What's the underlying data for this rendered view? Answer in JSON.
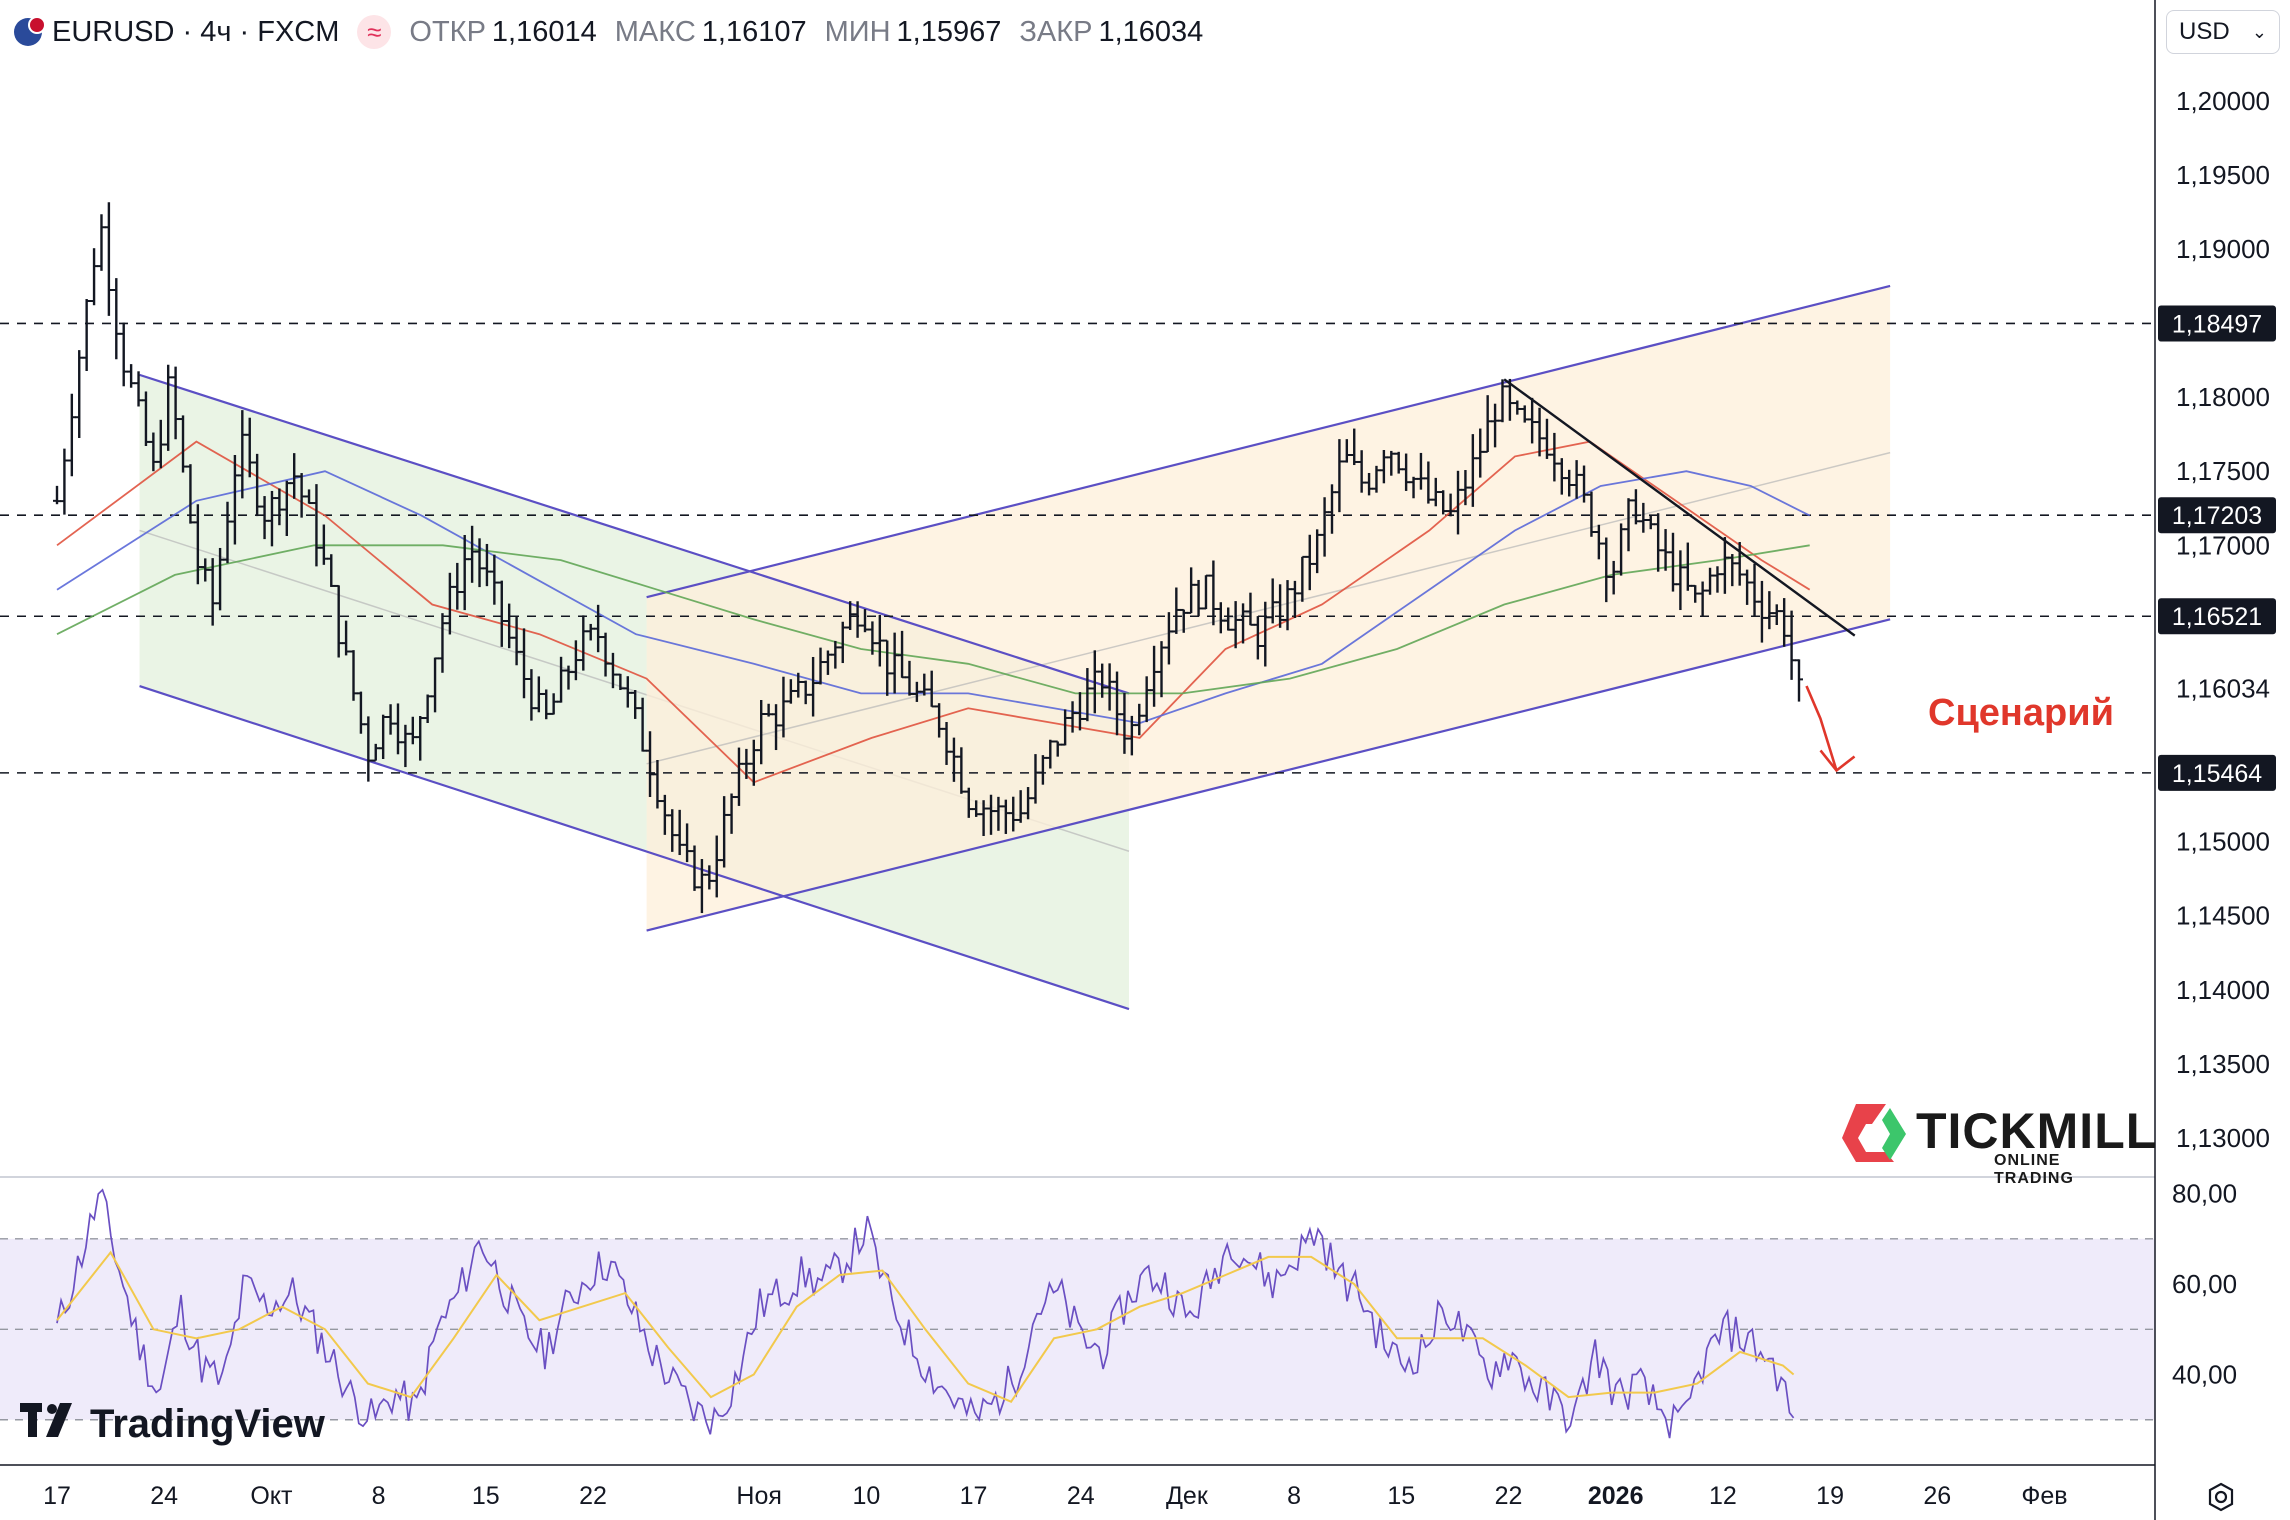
{
  "header": {
    "symbol": "EURUSD · 4ч · FXCM",
    "open_label": "ОТКР",
    "open_value": "1,16014",
    "high_label": "МАКС",
    "high_value": "1,16107",
    "low_label": "МИН",
    "low_value": "1,15967",
    "close_label": "ЗАКР",
    "close_value": "1,16034",
    "source_icon": "≈"
  },
  "currency_selector": {
    "value": "USD"
  },
  "annotations": {
    "scenario": "Сценарий"
  },
  "logos": {
    "tradingview": "TradingView",
    "tickmill": "TICKMILL",
    "tickmill_sub": "ONLINE TRADING"
  },
  "colors": {
    "candle": "#131722",
    "channel_line": "#5b4fc4",
    "green_zone": "#e6f2e1",
    "orange_zone": "#fdefd9",
    "ma_red": "#e0533f",
    "ma_blue": "#5a68d8",
    "ma_green": "#62a656",
    "rsi_line": "#6a4fc2",
    "rsi_ma": "#f2c94c",
    "rsi_band": "#efebfa",
    "scenario": "#e0372b"
  },
  "chart_data": [
    {
      "type": "candlestick",
      "symbol": "EURUSD",
      "timeframe": "4ч",
      "price_axis": {
        "ticks": [
          "1,20000",
          "1,19500",
          "1,19000",
          "1,18000",
          "1,17500",
          "1,17000",
          "1,16034",
          "1,15000",
          "1,14500",
          "1,14000",
          "1,13500",
          "1,13000"
        ],
        "tick_values": [
          1.2,
          1.195,
          1.19,
          1.18,
          1.175,
          1.17,
          1.16034,
          1.15,
          1.145,
          1.14,
          1.135,
          1.13
        ],
        "ylim": [
          1.1275,
          1.2068
        ]
      },
      "time_axis": {
        "labels": [
          "17",
          "24",
          "Окт",
          "8",
          "15",
          "22",
          "Ноя",
          "10",
          "17",
          "24",
          "Дек",
          "8",
          "15",
          "22",
          "2026",
          "12",
          "19",
          "26",
          "Фев"
        ],
        "bold_labels": [
          "2026"
        ],
        "label_positions": [
          0,
          1,
          2,
          3,
          4,
          5,
          6.55,
          7.55,
          8.55,
          9.55,
          10.54,
          11.54,
          12.54,
          13.54,
          14.54,
          15.54,
          16.54,
          17.54,
          18.54
        ]
      },
      "levels": [
        {
          "value": 1.18497,
          "label": "1,18497"
        },
        {
          "value": 1.17203,
          "label": "1,17203"
        },
        {
          "value": 1.16521,
          "label": "1,16521"
        },
        {
          "value": 1.15464,
          "label": "1,15464"
        }
      ],
      "last_price": {
        "value": 1.16034,
        "label": "1,16034"
      },
      "price_path": [
        [
          0,
          1.173
        ],
        [
          0.4,
          1.192
        ],
        [
          0.6,
          1.183
        ],
        [
          0.9,
          1.175
        ],
        [
          1.05,
          1.181
        ],
        [
          1.3,
          1.169
        ],
        [
          1.45,
          1.166
        ],
        [
          1.7,
          1.177
        ],
        [
          1.95,
          1.172
        ],
        [
          2.2,
          1.175
        ],
        [
          2.45,
          1.17
        ],
        [
          2.7,
          1.162
        ],
        [
          2.9,
          1.156
        ],
        [
          3.1,
          1.159
        ],
        [
          3.3,
          1.156
        ],
        [
          3.6,
          1.165
        ],
        [
          3.85,
          1.17
        ],
        [
          4.05,
          1.167
        ],
        [
          4.3,
          1.162
        ],
        [
          4.55,
          1.158
        ],
        [
          4.85,
          1.163
        ],
        [
          5.05,
          1.164
        ],
        [
          5.3,
          1.16
        ],
        [
          5.55,
          1.155
        ],
        [
          5.8,
          1.149
        ],
        [
          6.05,
          1.147
        ],
        [
          6.3,
          1.153
        ],
        [
          6.55,
          1.158
        ],
        [
          6.8,
          1.159
        ],
        [
          7.05,
          1.161
        ],
        [
          7.3,
          1.164
        ],
        [
          7.5,
          1.166
        ],
        [
          7.75,
          1.162
        ],
        [
          8.0,
          1.16
        ],
        [
          8.25,
          1.158
        ],
        [
          8.5,
          1.153
        ],
        [
          8.75,
          1.152
        ],
        [
          9.0,
          1.152
        ],
        [
          9.25,
          1.156
        ],
        [
          9.5,
          1.159
        ],
        [
          9.75,
          1.161
        ],
        [
          10.0,
          1.157
        ],
        [
          10.2,
          1.162
        ],
        [
          10.45,
          1.166
        ],
        [
          10.7,
          1.167
        ],
        [
          10.95,
          1.165
        ],
        [
          11.2,
          1.164
        ],
        [
          11.45,
          1.166
        ],
        [
          11.75,
          1.17
        ],
        [
          12.0,
          1.176
        ],
        [
          12.2,
          1.174
        ],
        [
          12.4,
          1.177
        ],
        [
          12.6,
          1.175
        ],
        [
          12.8,
          1.173
        ],
        [
          13.0,
          1.172
        ],
        [
          13.25,
          1.176
        ],
        [
          13.45,
          1.18
        ],
        [
          13.65,
          1.178
        ],
        [
          13.9,
          1.177
        ],
        [
          14.1,
          1.175
        ],
        [
          14.3,
          1.172
        ],
        [
          14.5,
          1.168
        ],
        [
          14.7,
          1.173
        ],
        [
          14.9,
          1.17
        ],
        [
          15.1,
          1.168
        ],
        [
          15.3,
          1.166
        ],
        [
          15.5,
          1.169
        ],
        [
          15.7,
          1.168
        ],
        [
          15.9,
          1.166
        ],
        [
          16.1,
          1.165
        ],
        [
          16.25,
          1.16
        ]
      ],
      "moving_averages": [
        {
          "color": "red",
          "path": [
            [
              0,
              1.17
            ],
            [
              1.3,
              1.177
            ],
            [
              2.5,
              1.172
            ],
            [
              3.5,
              1.166
            ],
            [
              4.5,
              1.164
            ],
            [
              5.5,
              1.161
            ],
            [
              6.5,
              1.154
            ],
            [
              7.6,
              1.157
            ],
            [
              8.5,
              1.159
            ],
            [
              9.3,
              1.158
            ],
            [
              10.1,
              1.157
            ],
            [
              10.9,
              1.163
            ],
            [
              11.8,
              1.166
            ],
            [
              12.8,
              1.171
            ],
            [
              13.6,
              1.176
            ],
            [
              14.3,
              1.177
            ],
            [
              15.1,
              1.173
            ],
            [
              15.9,
              1.169
            ],
            [
              16.35,
              1.167
            ]
          ]
        },
        {
          "color": "blue",
          "path": [
            [
              0,
              1.167
            ],
            [
              1.3,
              1.173
            ],
            [
              2.5,
              1.175
            ],
            [
              3.4,
              1.172
            ],
            [
              4.4,
              1.168
            ],
            [
              5.4,
              1.164
            ],
            [
              6.5,
              1.162
            ],
            [
              7.5,
              1.16
            ],
            [
              8.5,
              1.16
            ],
            [
              9.3,
              1.159
            ],
            [
              10.1,
              1.158
            ],
            [
              10.9,
              1.16
            ],
            [
              11.8,
              1.162
            ],
            [
              12.8,
              1.167
            ],
            [
              13.6,
              1.171
            ],
            [
              14.4,
              1.174
            ],
            [
              15.2,
              1.175
            ],
            [
              15.8,
              1.174
            ],
            [
              16.35,
              1.172
            ]
          ]
        },
        {
          "color": "green",
          "path": [
            [
              0,
              1.164
            ],
            [
              1.1,
              1.168
            ],
            [
              2.4,
              1.17
            ],
            [
              3.6,
              1.17
            ],
            [
              4.7,
              1.169
            ],
            [
              5.6,
              1.167
            ],
            [
              6.5,
              1.165
            ],
            [
              7.5,
              1.163
            ],
            [
              8.5,
              1.162
            ],
            [
              9.5,
              1.16
            ],
            [
              10.5,
              1.16
            ],
            [
              11.5,
              1.161
            ],
            [
              12.5,
              1.163
            ],
            [
              13.5,
              1.166
            ],
            [
              14.5,
              1.168
            ],
            [
              15.5,
              1.169
            ],
            [
              16.35,
              1.17
            ]
          ]
        }
      ],
      "channels": [
        {
          "zone": "green",
          "x": [
            0.77,
            10.0
          ],
          "upper": [
            1.1815,
            1.16
          ],
          "lower": [
            1.1605,
            1.1387
          ]
        },
        {
          "zone": "orange",
          "x": [
            5.5,
            17.1
          ],
          "upper": [
            1.1665,
            1.1875
          ],
          "lower": [
            1.144,
            1.165
          ]
        }
      ],
      "trendline": {
        "from": [
          13.5,
          1.1812
        ],
        "to": [
          16.77,
          1.1639
        ]
      },
      "scenario_arrow": [
        [
          16.32,
          1.1605
        ],
        [
          16.45,
          1.1583
        ],
        [
          16.6,
          1.1548
        ]
      ]
    },
    {
      "type": "line",
      "indicator": "RSI",
      "y_ticks": [
        "80,00",
        "60,00",
        "40,00"
      ],
      "tick_values": [
        80,
        60,
        40
      ],
      "band": [
        30,
        70
      ],
      "midline": 50,
      "ylim": [
        20,
        83
      ],
      "rsi": [
        [
          0,
          50
        ],
        [
          0.25,
          68
        ],
        [
          0.4,
          80
        ],
        [
          0.55,
          66
        ],
        [
          0.75,
          48
        ],
        [
          0.95,
          35
        ],
        [
          1.15,
          55
        ],
        [
          1.35,
          42
        ],
        [
          1.55,
          38
        ],
        [
          1.75,
          60
        ],
        [
          1.95,
          55
        ],
        [
          2.2,
          58
        ],
        [
          2.45,
          48
        ],
        [
          2.6,
          42
        ],
        [
          2.75,
          35
        ],
        [
          2.95,
          30
        ],
        [
          3.15,
          36
        ],
        [
          3.35,
          32
        ],
        [
          3.55,
          50
        ],
        [
          3.75,
          58
        ],
        [
          3.95,
          70
        ],
        [
          4.15,
          60
        ],
        [
          4.35,
          50
        ],
        [
          4.55,
          45
        ],
        [
          4.75,
          55
        ],
        [
          4.95,
          62
        ],
        [
          5.15,
          65
        ],
        [
          5.35,
          55
        ],
        [
          5.55,
          45
        ],
        [
          5.75,
          38
        ],
        [
          5.95,
          32
        ],
        [
          6.15,
          30
        ],
        [
          6.35,
          40
        ],
        [
          6.55,
          55
        ],
        [
          6.75,
          58
        ],
        [
          6.95,
          62
        ],
        [
          7.15,
          60
        ],
        [
          7.35,
          65
        ],
        [
          7.55,
          72
        ],
        [
          7.75,
          58
        ],
        [
          7.95,
          48
        ],
        [
          8.15,
          40
        ],
        [
          8.35,
          35
        ],
        [
          8.55,
          30
        ],
        [
          8.75,
          34
        ],
        [
          8.95,
          40
        ],
        [
          9.15,
          55
        ],
        [
          9.35,
          58
        ],
        [
          9.55,
          48
        ],
        [
          9.75,
          45
        ],
        [
          9.95,
          55
        ],
        [
          10.15,
          62
        ],
        [
          10.35,
          60
        ],
        [
          10.55,
          52
        ],
        [
          10.75,
          60
        ],
        [
          10.95,
          70
        ],
        [
          11.15,
          65
        ],
        [
          11.35,
          60
        ],
        [
          11.55,
          66
        ],
        [
          11.75,
          72
        ],
        [
          11.95,
          62
        ],
        [
          12.15,
          58
        ],
        [
          12.35,
          48
        ],
        [
          12.55,
          42
        ],
        [
          12.75,
          46
        ],
        [
          12.95,
          55
        ],
        [
          13.15,
          48
        ],
        [
          13.35,
          40
        ],
        [
          13.55,
          45
        ],
        [
          13.75,
          38
        ],
        [
          13.95,
          34
        ],
        [
          14.15,
          30
        ],
        [
          14.35,
          45
        ],
        [
          14.55,
          35
        ],
        [
          14.75,
          38
        ],
        [
          14.95,
          32
        ],
        [
          15.15,
          28
        ],
        [
          15.35,
          42
        ],
        [
          15.55,
          50
        ],
        [
          15.75,
          48
        ],
        [
          15.95,
          44
        ],
        [
          16.1,
          38
        ],
        [
          16.2,
          28
        ]
      ],
      "rsi_ma": [
        [
          0,
          52
        ],
        [
          0.5,
          67
        ],
        [
          0.9,
          50
        ],
        [
          1.3,
          48
        ],
        [
          1.7,
          50
        ],
        [
          2.1,
          55
        ],
        [
          2.5,
          50
        ],
        [
          2.9,
          38
        ],
        [
          3.3,
          35
        ],
        [
          3.7,
          48
        ],
        [
          4.1,
          62
        ],
        [
          4.5,
          52
        ],
        [
          4.9,
          55
        ],
        [
          5.3,
          58
        ],
        [
          5.7,
          46
        ],
        [
          6.1,
          35
        ],
        [
          6.5,
          40
        ],
        [
          6.9,
          55
        ],
        [
          7.3,
          62
        ],
        [
          7.7,
          63
        ],
        [
          8.1,
          50
        ],
        [
          8.5,
          38
        ],
        [
          8.9,
          34
        ],
        [
          9.3,
          48
        ],
        [
          9.7,
          50
        ],
        [
          10.1,
          55
        ],
        [
          10.5,
          58
        ],
        [
          10.9,
          62
        ],
        [
          11.3,
          66
        ],
        [
          11.7,
          66
        ],
        [
          12.1,
          60
        ],
        [
          12.5,
          48
        ],
        [
          12.9,
          48
        ],
        [
          13.3,
          48
        ],
        [
          13.7,
          42
        ],
        [
          14.1,
          35
        ],
        [
          14.5,
          36
        ],
        [
          14.9,
          36
        ],
        [
          15.3,
          38
        ],
        [
          15.7,
          45
        ],
        [
          16.1,
          42
        ],
        [
          16.2,
          40
        ]
      ]
    }
  ]
}
